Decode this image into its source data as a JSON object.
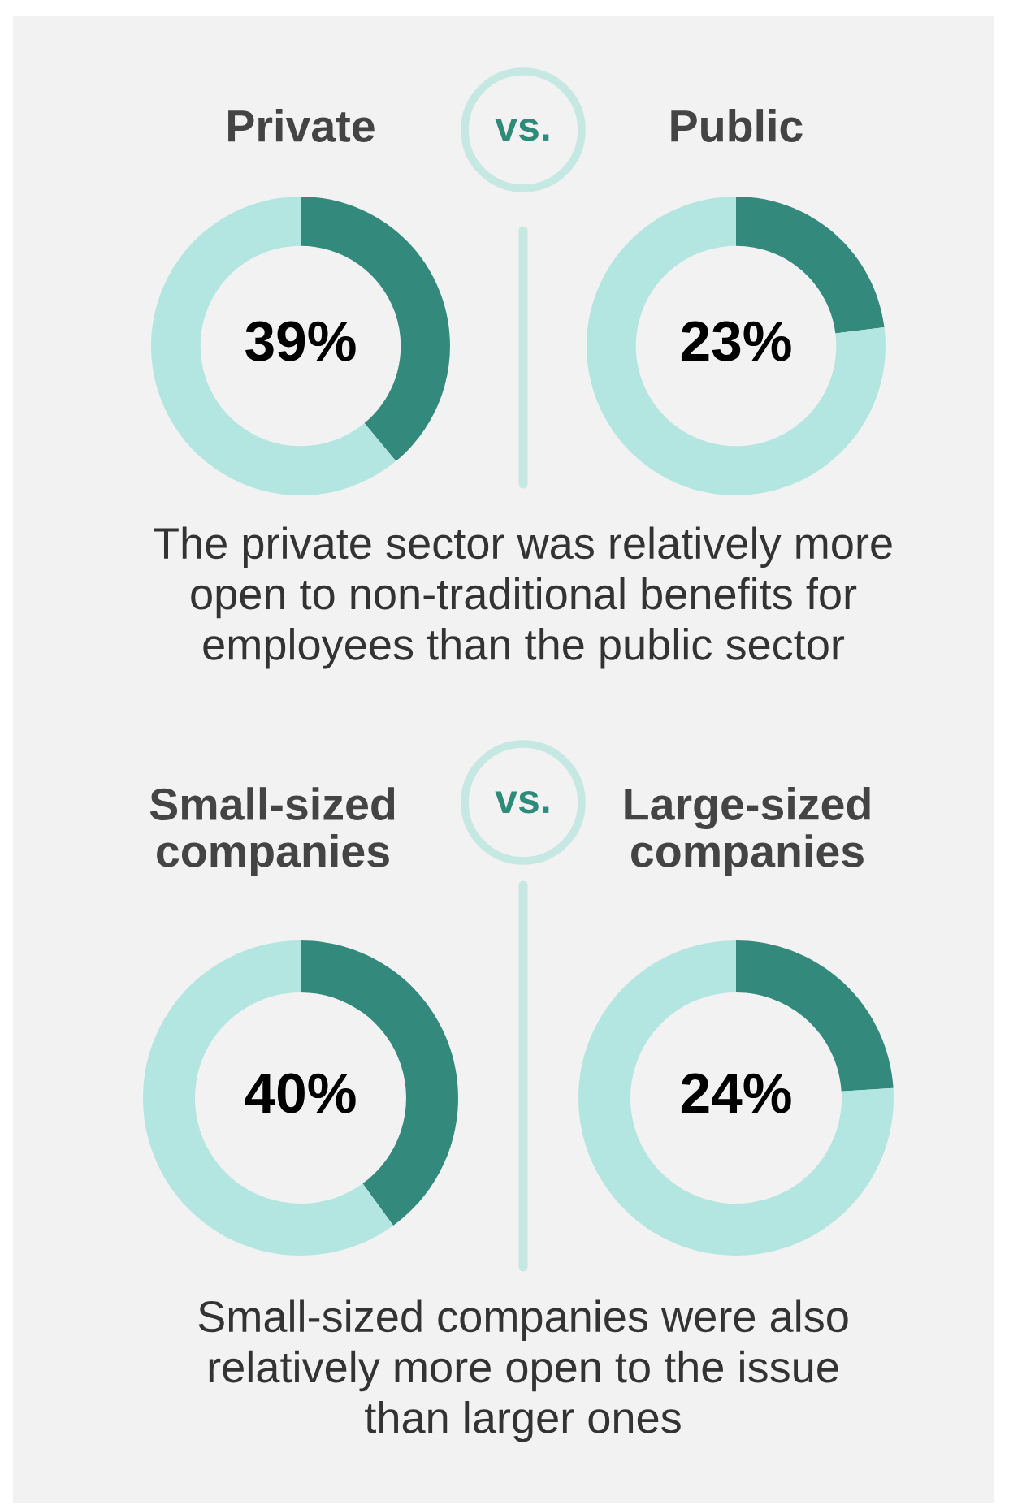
{
  "chart_data": [
    {
      "type": "donut",
      "title": "Private",
      "categories": [
        null,
        null
      ],
      "values": [
        39,
        61
      ],
      "colors": [
        "#338a7c",
        "#b3e6e0"
      ],
      "value_labels": [
        "39%",
        null
      ],
      "annotations": [
        "vs.",
        "The private sector was relatively more\nopen to non-traditional benefits for\nemployees than the public sector"
      ]
    },
    {
      "type": "donut",
      "title": "Public",
      "categories": [
        null,
        null
      ],
      "values": [
        23,
        77
      ],
      "colors": [
        "#338a7c",
        "#b3e6e0"
      ],
      "value_labels": [
        "23%",
        null
      ]
    },
    {
      "type": "donut",
      "title": "Small-sized\ncompanies",
      "categories": [
        null,
        null
      ],
      "values": [
        40,
        60
      ],
      "colors": [
        "#338a7c",
        "#b3e6e0"
      ],
      "value_labels": [
        "40%",
        null
      ],
      "annotations": [
        "vs.",
        "Small-sized companies were also\nrelatively more open to the issue\nthan larger ones"
      ]
    },
    {
      "type": "donut",
      "title": "Large-sized\ncompanies",
      "categories": [
        null,
        null
      ],
      "values": [
        24,
        76
      ],
      "colors": [
        "#338a7c",
        "#b3e6e0"
      ],
      "value_labels": [
        "24%",
        null
      ]
    }
  ]
}
